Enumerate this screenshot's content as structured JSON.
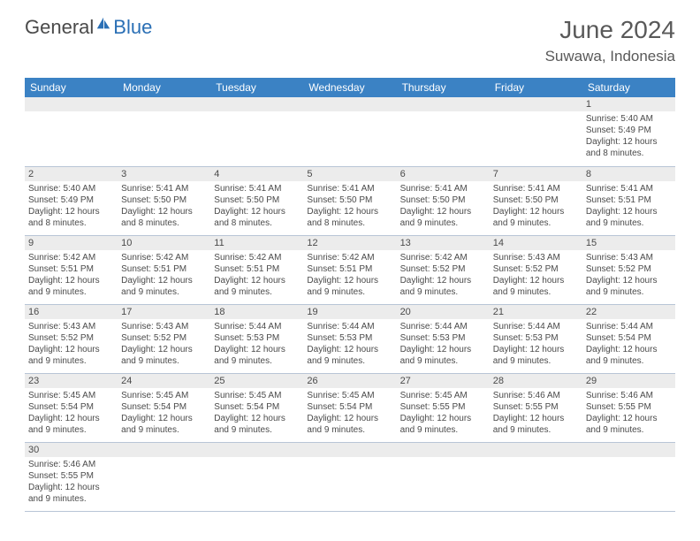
{
  "logo": {
    "part1": "General",
    "part2": "Blue",
    "icon_color": "#2a6fb5"
  },
  "title": "June 2024",
  "location": "Suwawa, Indonesia",
  "colors": {
    "header_bg": "#3b82c4",
    "header_fg": "#ffffff",
    "daynum_bg": "#ececec",
    "border": "#b8c5d6",
    "text": "#4a4a4a"
  },
  "day_headers": [
    "Sunday",
    "Monday",
    "Tuesday",
    "Wednesday",
    "Thursday",
    "Friday",
    "Saturday"
  ],
  "weeks": [
    [
      {
        "n": "",
        "sunrise": "",
        "sunset": "",
        "daylight": ""
      },
      {
        "n": "",
        "sunrise": "",
        "sunset": "",
        "daylight": ""
      },
      {
        "n": "",
        "sunrise": "",
        "sunset": "",
        "daylight": ""
      },
      {
        "n": "",
        "sunrise": "",
        "sunset": "",
        "daylight": ""
      },
      {
        "n": "",
        "sunrise": "",
        "sunset": "",
        "daylight": ""
      },
      {
        "n": "",
        "sunrise": "",
        "sunset": "",
        "daylight": ""
      },
      {
        "n": "1",
        "sunrise": "Sunrise: 5:40 AM",
        "sunset": "Sunset: 5:49 PM",
        "daylight": "Daylight: 12 hours and 8 minutes."
      }
    ],
    [
      {
        "n": "2",
        "sunrise": "Sunrise: 5:40 AM",
        "sunset": "Sunset: 5:49 PM",
        "daylight": "Daylight: 12 hours and 8 minutes."
      },
      {
        "n": "3",
        "sunrise": "Sunrise: 5:41 AM",
        "sunset": "Sunset: 5:50 PM",
        "daylight": "Daylight: 12 hours and 8 minutes."
      },
      {
        "n": "4",
        "sunrise": "Sunrise: 5:41 AM",
        "sunset": "Sunset: 5:50 PM",
        "daylight": "Daylight: 12 hours and 8 minutes."
      },
      {
        "n": "5",
        "sunrise": "Sunrise: 5:41 AM",
        "sunset": "Sunset: 5:50 PM",
        "daylight": "Daylight: 12 hours and 8 minutes."
      },
      {
        "n": "6",
        "sunrise": "Sunrise: 5:41 AM",
        "sunset": "Sunset: 5:50 PM",
        "daylight": "Daylight: 12 hours and 9 minutes."
      },
      {
        "n": "7",
        "sunrise": "Sunrise: 5:41 AM",
        "sunset": "Sunset: 5:50 PM",
        "daylight": "Daylight: 12 hours and 9 minutes."
      },
      {
        "n": "8",
        "sunrise": "Sunrise: 5:41 AM",
        "sunset": "Sunset: 5:51 PM",
        "daylight": "Daylight: 12 hours and 9 minutes."
      }
    ],
    [
      {
        "n": "9",
        "sunrise": "Sunrise: 5:42 AM",
        "sunset": "Sunset: 5:51 PM",
        "daylight": "Daylight: 12 hours and 9 minutes."
      },
      {
        "n": "10",
        "sunrise": "Sunrise: 5:42 AM",
        "sunset": "Sunset: 5:51 PM",
        "daylight": "Daylight: 12 hours and 9 minutes."
      },
      {
        "n": "11",
        "sunrise": "Sunrise: 5:42 AM",
        "sunset": "Sunset: 5:51 PM",
        "daylight": "Daylight: 12 hours and 9 minutes."
      },
      {
        "n": "12",
        "sunrise": "Sunrise: 5:42 AM",
        "sunset": "Sunset: 5:51 PM",
        "daylight": "Daylight: 12 hours and 9 minutes."
      },
      {
        "n": "13",
        "sunrise": "Sunrise: 5:42 AM",
        "sunset": "Sunset: 5:52 PM",
        "daylight": "Daylight: 12 hours and 9 minutes."
      },
      {
        "n": "14",
        "sunrise": "Sunrise: 5:43 AM",
        "sunset": "Sunset: 5:52 PM",
        "daylight": "Daylight: 12 hours and 9 minutes."
      },
      {
        "n": "15",
        "sunrise": "Sunrise: 5:43 AM",
        "sunset": "Sunset: 5:52 PM",
        "daylight": "Daylight: 12 hours and 9 minutes."
      }
    ],
    [
      {
        "n": "16",
        "sunrise": "Sunrise: 5:43 AM",
        "sunset": "Sunset: 5:52 PM",
        "daylight": "Daylight: 12 hours and 9 minutes."
      },
      {
        "n": "17",
        "sunrise": "Sunrise: 5:43 AM",
        "sunset": "Sunset: 5:52 PM",
        "daylight": "Daylight: 12 hours and 9 minutes."
      },
      {
        "n": "18",
        "sunrise": "Sunrise: 5:44 AM",
        "sunset": "Sunset: 5:53 PM",
        "daylight": "Daylight: 12 hours and 9 minutes."
      },
      {
        "n": "19",
        "sunrise": "Sunrise: 5:44 AM",
        "sunset": "Sunset: 5:53 PM",
        "daylight": "Daylight: 12 hours and 9 minutes."
      },
      {
        "n": "20",
        "sunrise": "Sunrise: 5:44 AM",
        "sunset": "Sunset: 5:53 PM",
        "daylight": "Daylight: 12 hours and 9 minutes."
      },
      {
        "n": "21",
        "sunrise": "Sunrise: 5:44 AM",
        "sunset": "Sunset: 5:53 PM",
        "daylight": "Daylight: 12 hours and 9 minutes."
      },
      {
        "n": "22",
        "sunrise": "Sunrise: 5:44 AM",
        "sunset": "Sunset: 5:54 PM",
        "daylight": "Daylight: 12 hours and 9 minutes."
      }
    ],
    [
      {
        "n": "23",
        "sunrise": "Sunrise: 5:45 AM",
        "sunset": "Sunset: 5:54 PM",
        "daylight": "Daylight: 12 hours and 9 minutes."
      },
      {
        "n": "24",
        "sunrise": "Sunrise: 5:45 AM",
        "sunset": "Sunset: 5:54 PM",
        "daylight": "Daylight: 12 hours and 9 minutes."
      },
      {
        "n": "25",
        "sunrise": "Sunrise: 5:45 AM",
        "sunset": "Sunset: 5:54 PM",
        "daylight": "Daylight: 12 hours and 9 minutes."
      },
      {
        "n": "26",
        "sunrise": "Sunrise: 5:45 AM",
        "sunset": "Sunset: 5:54 PM",
        "daylight": "Daylight: 12 hours and 9 minutes."
      },
      {
        "n": "27",
        "sunrise": "Sunrise: 5:45 AM",
        "sunset": "Sunset: 5:55 PM",
        "daylight": "Daylight: 12 hours and 9 minutes."
      },
      {
        "n": "28",
        "sunrise": "Sunrise: 5:46 AM",
        "sunset": "Sunset: 5:55 PM",
        "daylight": "Daylight: 12 hours and 9 minutes."
      },
      {
        "n": "29",
        "sunrise": "Sunrise: 5:46 AM",
        "sunset": "Sunset: 5:55 PM",
        "daylight": "Daylight: 12 hours and 9 minutes."
      }
    ],
    [
      {
        "n": "30",
        "sunrise": "Sunrise: 5:46 AM",
        "sunset": "Sunset: 5:55 PM",
        "daylight": "Daylight: 12 hours and 9 minutes."
      },
      {
        "n": "",
        "sunrise": "",
        "sunset": "",
        "daylight": ""
      },
      {
        "n": "",
        "sunrise": "",
        "sunset": "",
        "daylight": ""
      },
      {
        "n": "",
        "sunrise": "",
        "sunset": "",
        "daylight": ""
      },
      {
        "n": "",
        "sunrise": "",
        "sunset": "",
        "daylight": ""
      },
      {
        "n": "",
        "sunrise": "",
        "sunset": "",
        "daylight": ""
      },
      {
        "n": "",
        "sunrise": "",
        "sunset": "",
        "daylight": ""
      }
    ]
  ]
}
